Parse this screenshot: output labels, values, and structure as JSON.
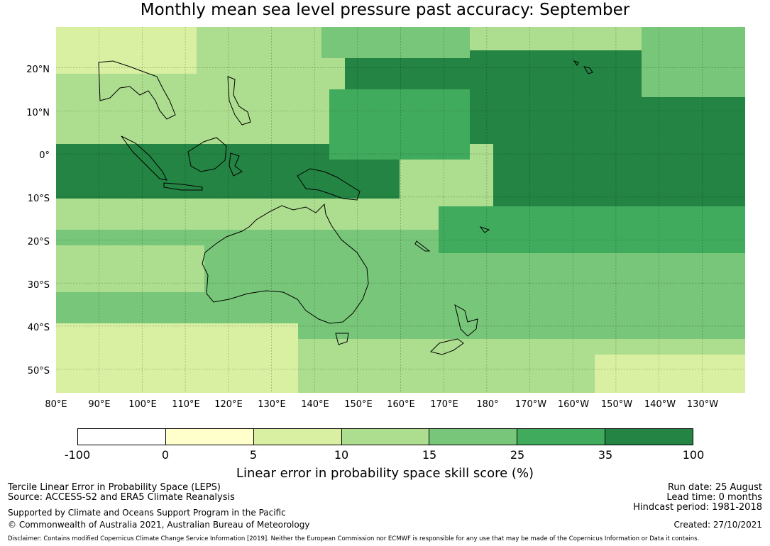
{
  "title": "Monthly mean sea level pressure past accuracy: September",
  "map": {
    "lat_labels": [
      "20°N",
      "10°N",
      "0°",
      "10°S",
      "20°S",
      "30°S",
      "40°S",
      "50°S"
    ],
    "lon_labels": [
      "80°E",
      "90°E",
      "100°E",
      "110°E",
      "120°E",
      "130°E",
      "140°E",
      "150°E",
      "160°E",
      "170°E",
      "180°",
      "170°W",
      "160°W",
      "150°W",
      "140°W",
      "130°W"
    ],
    "lon_range": [
      80,
      240
    ],
    "lat_range": [
      -55.5,
      29.5
    ],
    "grid": true
  },
  "colorbar": {
    "ticks": [
      "-100",
      "0",
      "5",
      "10",
      "15",
      "25",
      "35",
      "100"
    ],
    "colors": [
      "#ffffff",
      "#ffffcc",
      "#d9f0a3",
      "#addd8e",
      "#78c679",
      "#41ab5d",
      "#238443"
    ],
    "label": "Linear error in probability space skill score (%)"
  },
  "footer": {
    "left_line1": "Tercile Linear Error in Probability Space (LEPS)",
    "left_line2": "Source: ACCESS-S2 and ERA5 Climate Reanalysis",
    "support": "Supported by Climate and Oceans Support Program in the Pacific",
    "copyright": "© Commonwealth of Australia 2021, Australian Bureau of Meteorology",
    "run_date": "Run date: 25 August",
    "lead_time": "Lead time: 0 months",
    "hindcast": "Hindcast period: 1981-2018",
    "created": "Created: 27/10/2021",
    "disclaimer": "Disclaimer: Contains modified Copernicus Climate Change Service Information [2019]. Neither the European Commission nor ECMWF is responsible for any use that may be made of the Copernicus Information or Data it contains."
  }
}
